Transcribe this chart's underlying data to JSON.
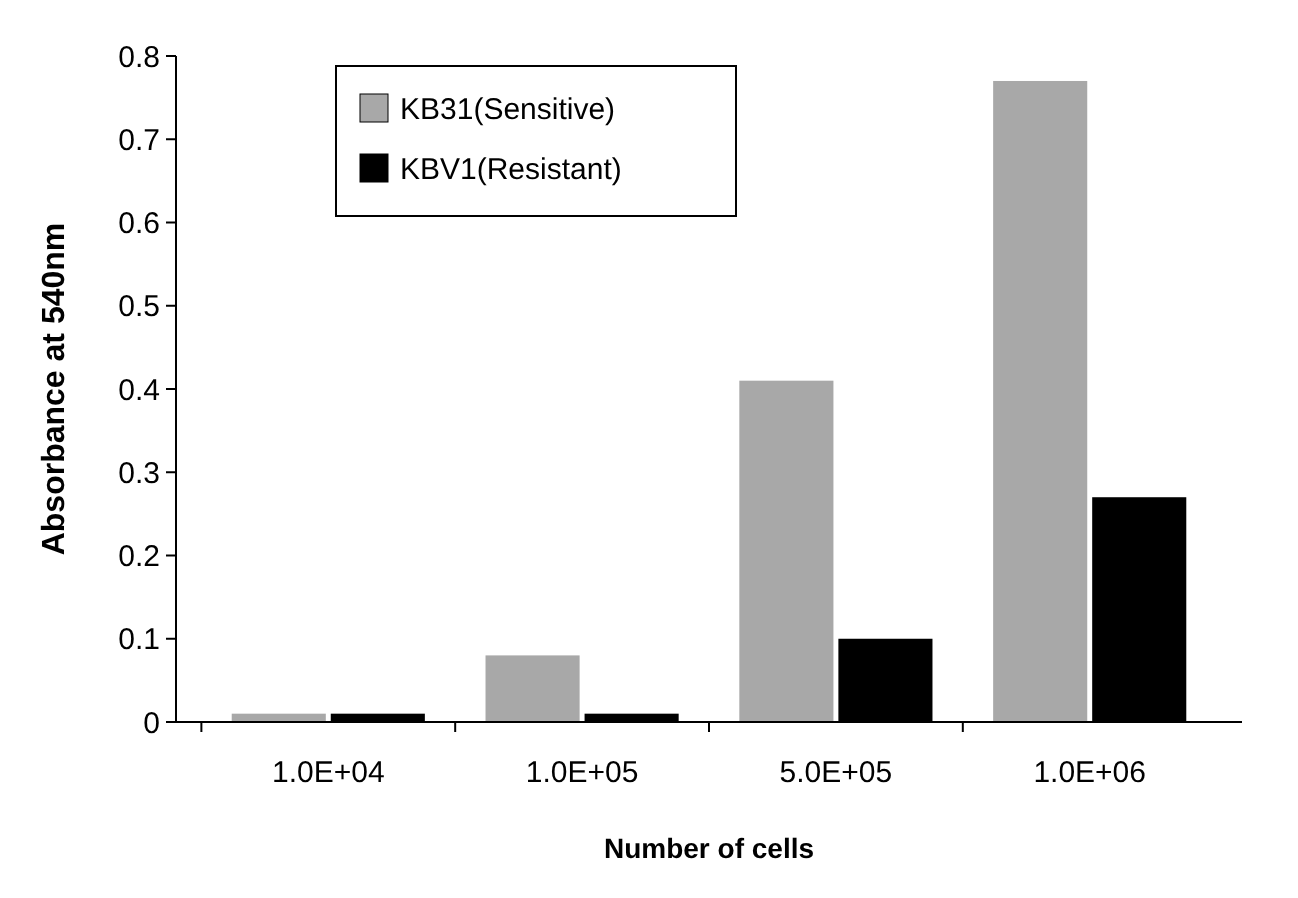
{
  "chart_data": {
    "type": "bar",
    "xlabel": "Number of cells",
    "ylabel": "Absorbance at 540nm",
    "categories": [
      "1.0E+04",
      "1.0E+05",
      "5.0E+05",
      "1.0E+06"
    ],
    "series": [
      {
        "name": "KB31(Sensitive)",
        "color": "#a8a8a8",
        "values": [
          0.01,
          0.08,
          0.41,
          0.77
        ]
      },
      {
        "name": "KBV1(Resistant)",
        "color": "#000000",
        "values": [
          0.01,
          0.01,
          0.1,
          0.27
        ]
      }
    ],
    "ylim": [
      0,
      0.8
    ],
    "yticks": [
      0,
      0.1,
      0.2,
      0.3,
      0.4,
      0.5,
      0.6,
      0.7,
      0.8
    ],
    "grid": false,
    "legend": "top"
  }
}
